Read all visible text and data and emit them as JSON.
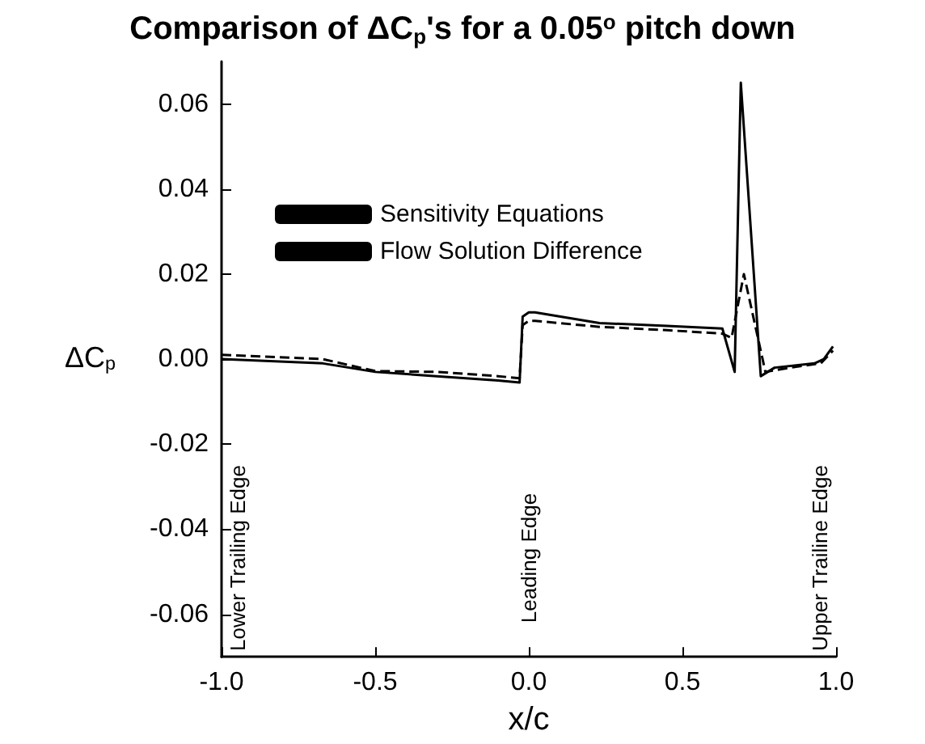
{
  "chart_data": {
    "type": "line",
    "title": "Comparison of ΔC$_{p}$'s for a 0.05$^{o}$ pitch down",
    "xlabel": "x/c",
    "ylabel": "ΔC$_{p}$",
    "xlim": [
      -1,
      1
    ],
    "ylim": [
      -0.07,
      0.07
    ],
    "xticks": [
      {
        "value": -1,
        "label": "-1.0"
      },
      {
        "value": -0.5,
        "label": "-0.5"
      },
      {
        "value": 0,
        "label": "0.0"
      },
      {
        "value": 0.5,
        "label": "0.5"
      },
      {
        "value": 1,
        "label": "1.0"
      }
    ],
    "yticks": [
      {
        "value": -0.06,
        "label": "-0.06"
      },
      {
        "value": -0.04,
        "label": "-0.04"
      },
      {
        "value": -0.02,
        "label": "-0.02"
      },
      {
        "value": 0,
        "label": "0.00"
      },
      {
        "value": 0.02,
        "label": "0.02"
      },
      {
        "value": 0.04,
        "label": "0.04"
      },
      {
        "value": 0.06,
        "label": "0.06"
      }
    ],
    "grid": false,
    "legend": "top",
    "marker": "none",
    "series": [
      {
        "name": "Sensitivity Equations",
        "color": "#000000",
        "line_style": "solid",
        "x": [
          -1,
          -0.67,
          -0.5,
          -0.3,
          -0.1,
          -0.03,
          -0.02,
          0.0,
          0.02,
          0.23,
          0.45,
          0.63,
          0.67,
          0.69,
          0.755,
          0.8,
          0.93,
          0.96,
          0.99
        ],
        "values": [
          0.0,
          -0.001,
          -0.003,
          -0.004,
          -0.005,
          -0.0055,
          0.01,
          0.011,
          0.011,
          0.0085,
          0.0078,
          0.0072,
          -0.003,
          0.065,
          -0.004,
          -0.002,
          -0.001,
          0.0,
          0.003
        ]
      },
      {
        "name": "Flow Solution Difference",
        "color": "#000000",
        "line_style": "dashed",
        "x": [
          -1,
          -0.67,
          -0.5,
          -0.3,
          -0.1,
          -0.03,
          -0.02,
          0.0,
          0.02,
          0.23,
          0.45,
          0.63,
          0.66,
          0.7,
          0.77,
          0.85,
          0.95,
          0.99
        ],
        "values": [
          0.001,
          0.0,
          -0.0028,
          -0.003,
          -0.004,
          -0.0045,
          0.008,
          0.009,
          0.009,
          0.0076,
          0.0068,
          0.006,
          0.005,
          0.02,
          -0.003,
          -0.002,
          -0.001,
          0.002
        ]
      }
    ],
    "annotations": [
      "Lower Trailing Edge",
      "Leading Edge",
      "Upper Trailine Edge"
    ]
  }
}
